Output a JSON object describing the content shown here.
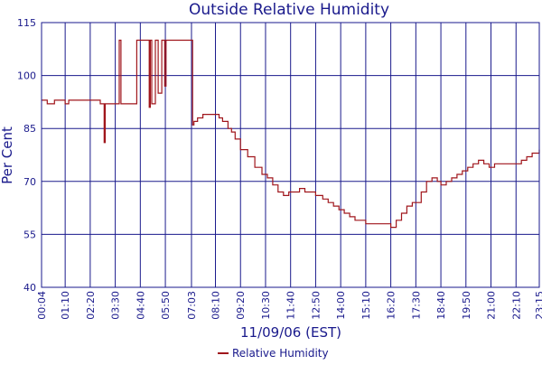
{
  "chart_data": {
    "type": "line",
    "title": "Outside Relative Humidity",
    "xlabel": "11/09/06 (EST)",
    "ylabel": "Per Cent",
    "ylim": [
      40,
      115
    ],
    "yticks": [
      40,
      55,
      70,
      85,
      100,
      115
    ],
    "xlim": [
      "00:04",
      "23:15"
    ],
    "xticks": [
      "00:04",
      "01:10",
      "02:20",
      "03:30",
      "04:40",
      "05:50",
      "07:03",
      "08:10",
      "09:20",
      "10:30",
      "11:40",
      "12:50",
      "14:00",
      "15:10",
      "16:20",
      "17:30",
      "18:40",
      "19:50",
      "21:00",
      "22:10",
      "23:15"
    ],
    "grid": true,
    "legend_position": "bottom-center",
    "colors": {
      "series": "#a0161c",
      "grid": "#1a1a8c",
      "text": "#1a1a8c"
    },
    "series": [
      {
        "name": "Relative Humidity",
        "x": [
          "00:04",
          "00:10",
          "00:20",
          "00:30",
          "00:40",
          "00:50",
          "01:00",
          "01:10",
          "01:20",
          "01:30",
          "01:40",
          "01:50",
          "02:00",
          "02:10",
          "02:20",
          "02:30",
          "02:40",
          "02:48",
          "02:52",
          "02:56",
          "02:59",
          "03:02",
          "03:06",
          "03:10",
          "03:20",
          "03:30",
          "03:38",
          "03:41",
          "03:46",
          "03:50",
          "04:00",
          "04:10",
          "04:20",
          "04:30",
          "04:40",
          "04:50",
          "05:00",
          "05:05",
          "05:08",
          "05:12",
          "05:18",
          "05:22",
          "05:30",
          "05:40",
          "05:45",
          "05:48",
          "05:52",
          "05:57",
          "06:01",
          "06:05",
          "06:20",
          "06:40",
          "06:59",
          "07:06",
          "07:10",
          "07:20",
          "07:35",
          "07:50",
          "08:10",
          "08:20",
          "08:30",
          "08:45",
          "08:55",
          "09:05",
          "09:20",
          "09:40",
          "10:00",
          "10:20",
          "10:35",
          "10:50",
          "11:05",
          "11:20",
          "11:35",
          "11:50",
          "12:05",
          "12:20",
          "12:35",
          "12:50",
          "13:00",
          "13:10",
          "13:25",
          "13:40",
          "13:55",
          "14:10",
          "14:25",
          "14:40",
          "14:55",
          "15:10",
          "15:25",
          "15:40",
          "15:55",
          "16:10",
          "16:20",
          "16:35",
          "16:50",
          "17:05",
          "17:20",
          "17:30",
          "17:45",
          "18:00",
          "18:15",
          "18:30",
          "18:40",
          "18:55",
          "19:10",
          "19:25",
          "19:40",
          "19:55",
          "20:10",
          "20:25",
          "20:40",
          "20:55",
          "21:10",
          "21:25",
          "21:40",
          "21:55",
          "22:10",
          "22:25",
          "22:40",
          "22:55",
          "23:15"
        ],
        "values": [
          93,
          93,
          92,
          92,
          93,
          93,
          93,
          92,
          93,
          93,
          93,
          93,
          93,
          93,
          93,
          93,
          93,
          92,
          92,
          92,
          81,
          92,
          92,
          92,
          92,
          92,
          92,
          110,
          92,
          92,
          92,
          92,
          92,
          110,
          110,
          110,
          110,
          91,
          110,
          92,
          92,
          110,
          95,
          110,
          110,
          97,
          110,
          110,
          110,
          110,
          110,
          110,
          110,
          86,
          87,
          88,
          89,
          89,
          89,
          88,
          87,
          85,
          84,
          82,
          79,
          77,
          74,
          72,
          71,
          69,
          67,
          66,
          67,
          67,
          68,
          67,
          67,
          66,
          66,
          65,
          64,
          63,
          62,
          61,
          60,
          59,
          59,
          58,
          58,
          58,
          58,
          58,
          57,
          59,
          61,
          63,
          64,
          64,
          67,
          70,
          71,
          70,
          69,
          70,
          71,
          72,
          73,
          74,
          75,
          76,
          75,
          74,
          75,
          75,
          75,
          75,
          75,
          76,
          77,
          78,
          79
        ]
      }
    ]
  }
}
